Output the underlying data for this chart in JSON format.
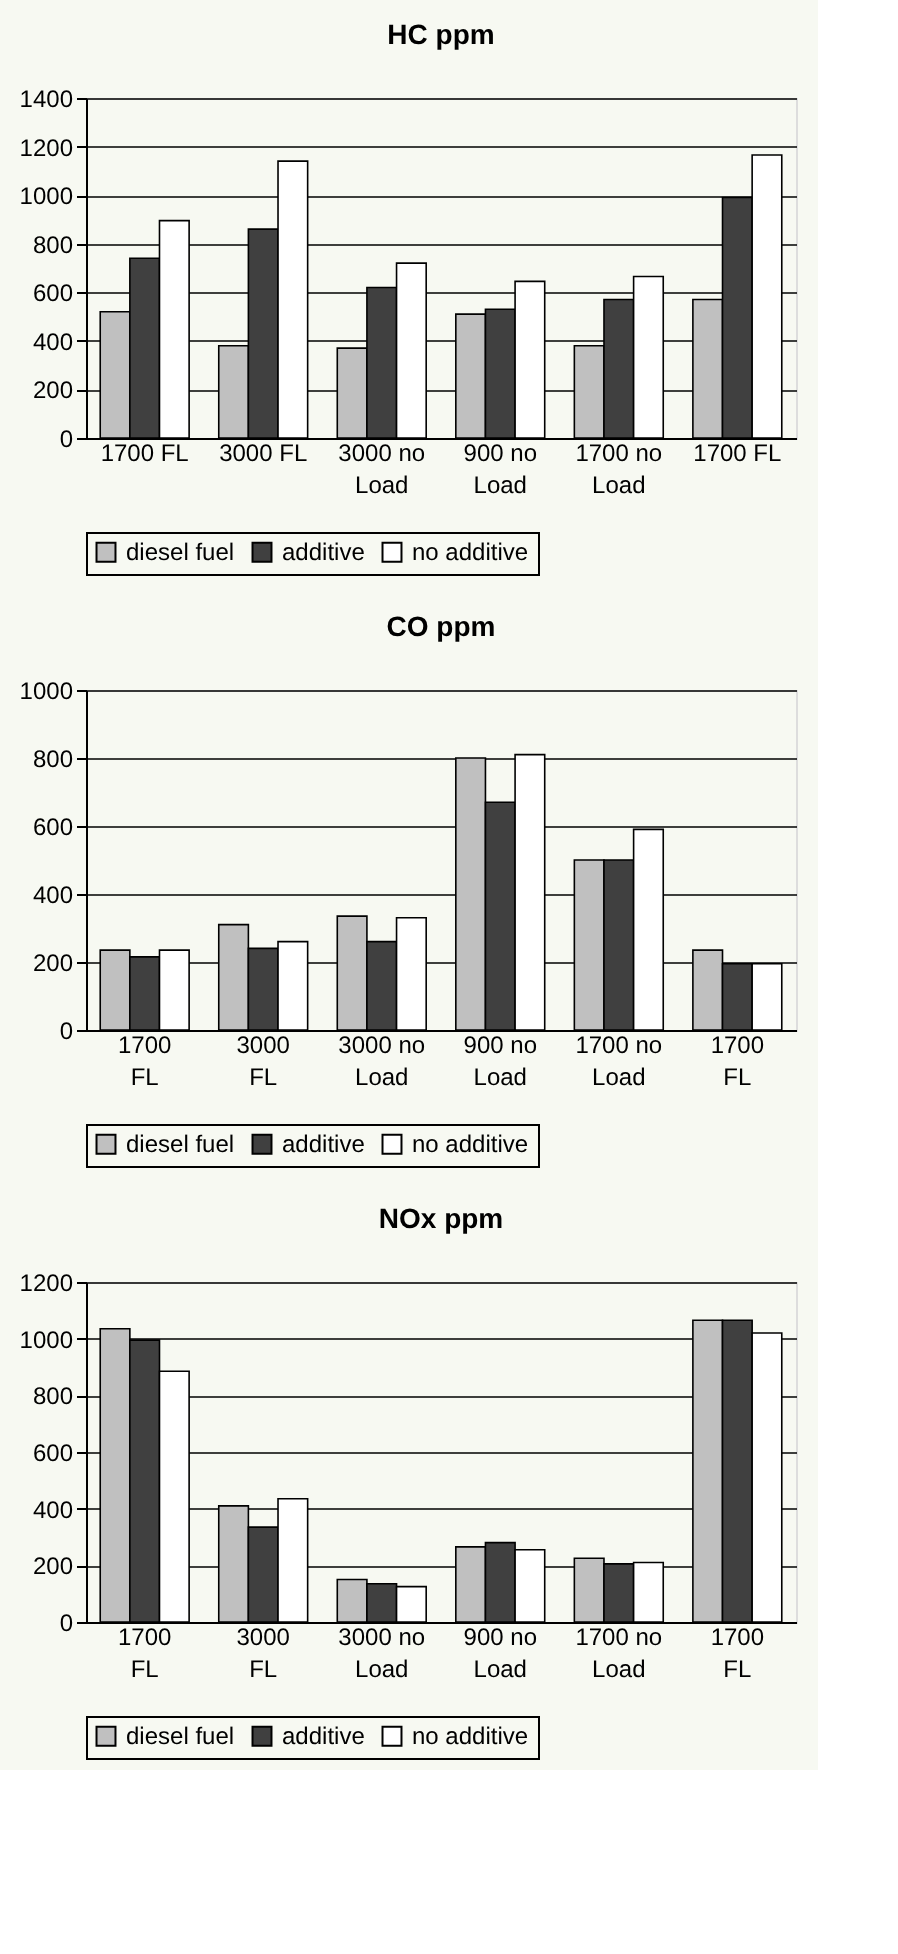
{
  "chart_data": [
    {
      "type": "bar",
      "title": "HC  ppm",
      "categories": [
        "1700 FL",
        "3000 FL",
        "3000 no Load",
        "900 no Load",
        "1700 no Load",
        "1700 FL"
      ],
      "ylim": [
        0,
        1400
      ],
      "yticks": [
        0,
        200,
        400,
        600,
        800,
        1000,
        1200,
        1400
      ],
      "grid": "y",
      "legend": "bottom",
      "series": [
        {
          "name": "diesel fuel",
          "color": "#c0c0c0",
          "values": [
            520,
            380,
            370,
            510,
            380,
            570
          ]
        },
        {
          "name": "additive",
          "color": "#404040",
          "values": [
            740,
            860,
            620,
            530,
            570,
            990
          ]
        },
        {
          "name": "no additive",
          "color": "#ffffff",
          "values": [
            895,
            1140,
            720,
            645,
            665,
            1165
          ]
        }
      ]
    },
    {
      "type": "bar",
      "title": "CO ppm",
      "categories": [
        "1700 FL",
        "3000 FL",
        "3000 no Load",
        "900 no Load",
        "1700 no Load",
        "1700 FL"
      ],
      "ylim": [
        0,
        1000
      ],
      "yticks": [
        0,
        200,
        400,
        600,
        800,
        1000
      ],
      "grid": "y",
      "legend": "bottom",
      "series": [
        {
          "name": "diesel fuel",
          "color": "#c0c0c0",
          "values": [
            235,
            310,
            335,
            800,
            500,
            235
          ]
        },
        {
          "name": "additive",
          "color": "#404040",
          "values": [
            215,
            240,
            260,
            670,
            500,
            195
          ]
        },
        {
          "name": "no additive",
          "color": "#ffffff",
          "values": [
            235,
            260,
            330,
            810,
            590,
            195
          ]
        }
      ]
    },
    {
      "type": "bar",
      "title": "NOx  ppm",
      "categories": [
        "1700 FL",
        "3000 FL",
        "3000 no Load",
        "900 no Load",
        "1700 no Load",
        "1700 FL"
      ],
      "ylim": [
        0,
        1200
      ],
      "yticks": [
        0,
        200,
        400,
        600,
        800,
        1000,
        1200
      ],
      "grid": "y",
      "legend": "bottom",
      "series": [
        {
          "name": "diesel fuel",
          "color": "#c0c0c0",
          "values": [
            1035,
            410,
            150,
            265,
            225,
            1065
          ]
        },
        {
          "name": "additive",
          "color": "#404040",
          "values": [
            995,
            335,
            135,
            280,
            205,
            1065
          ]
        },
        {
          "name": "no additive",
          "color": "#ffffff",
          "values": [
            885,
            435,
            125,
            255,
            210,
            1020
          ]
        }
      ]
    }
  ]
}
